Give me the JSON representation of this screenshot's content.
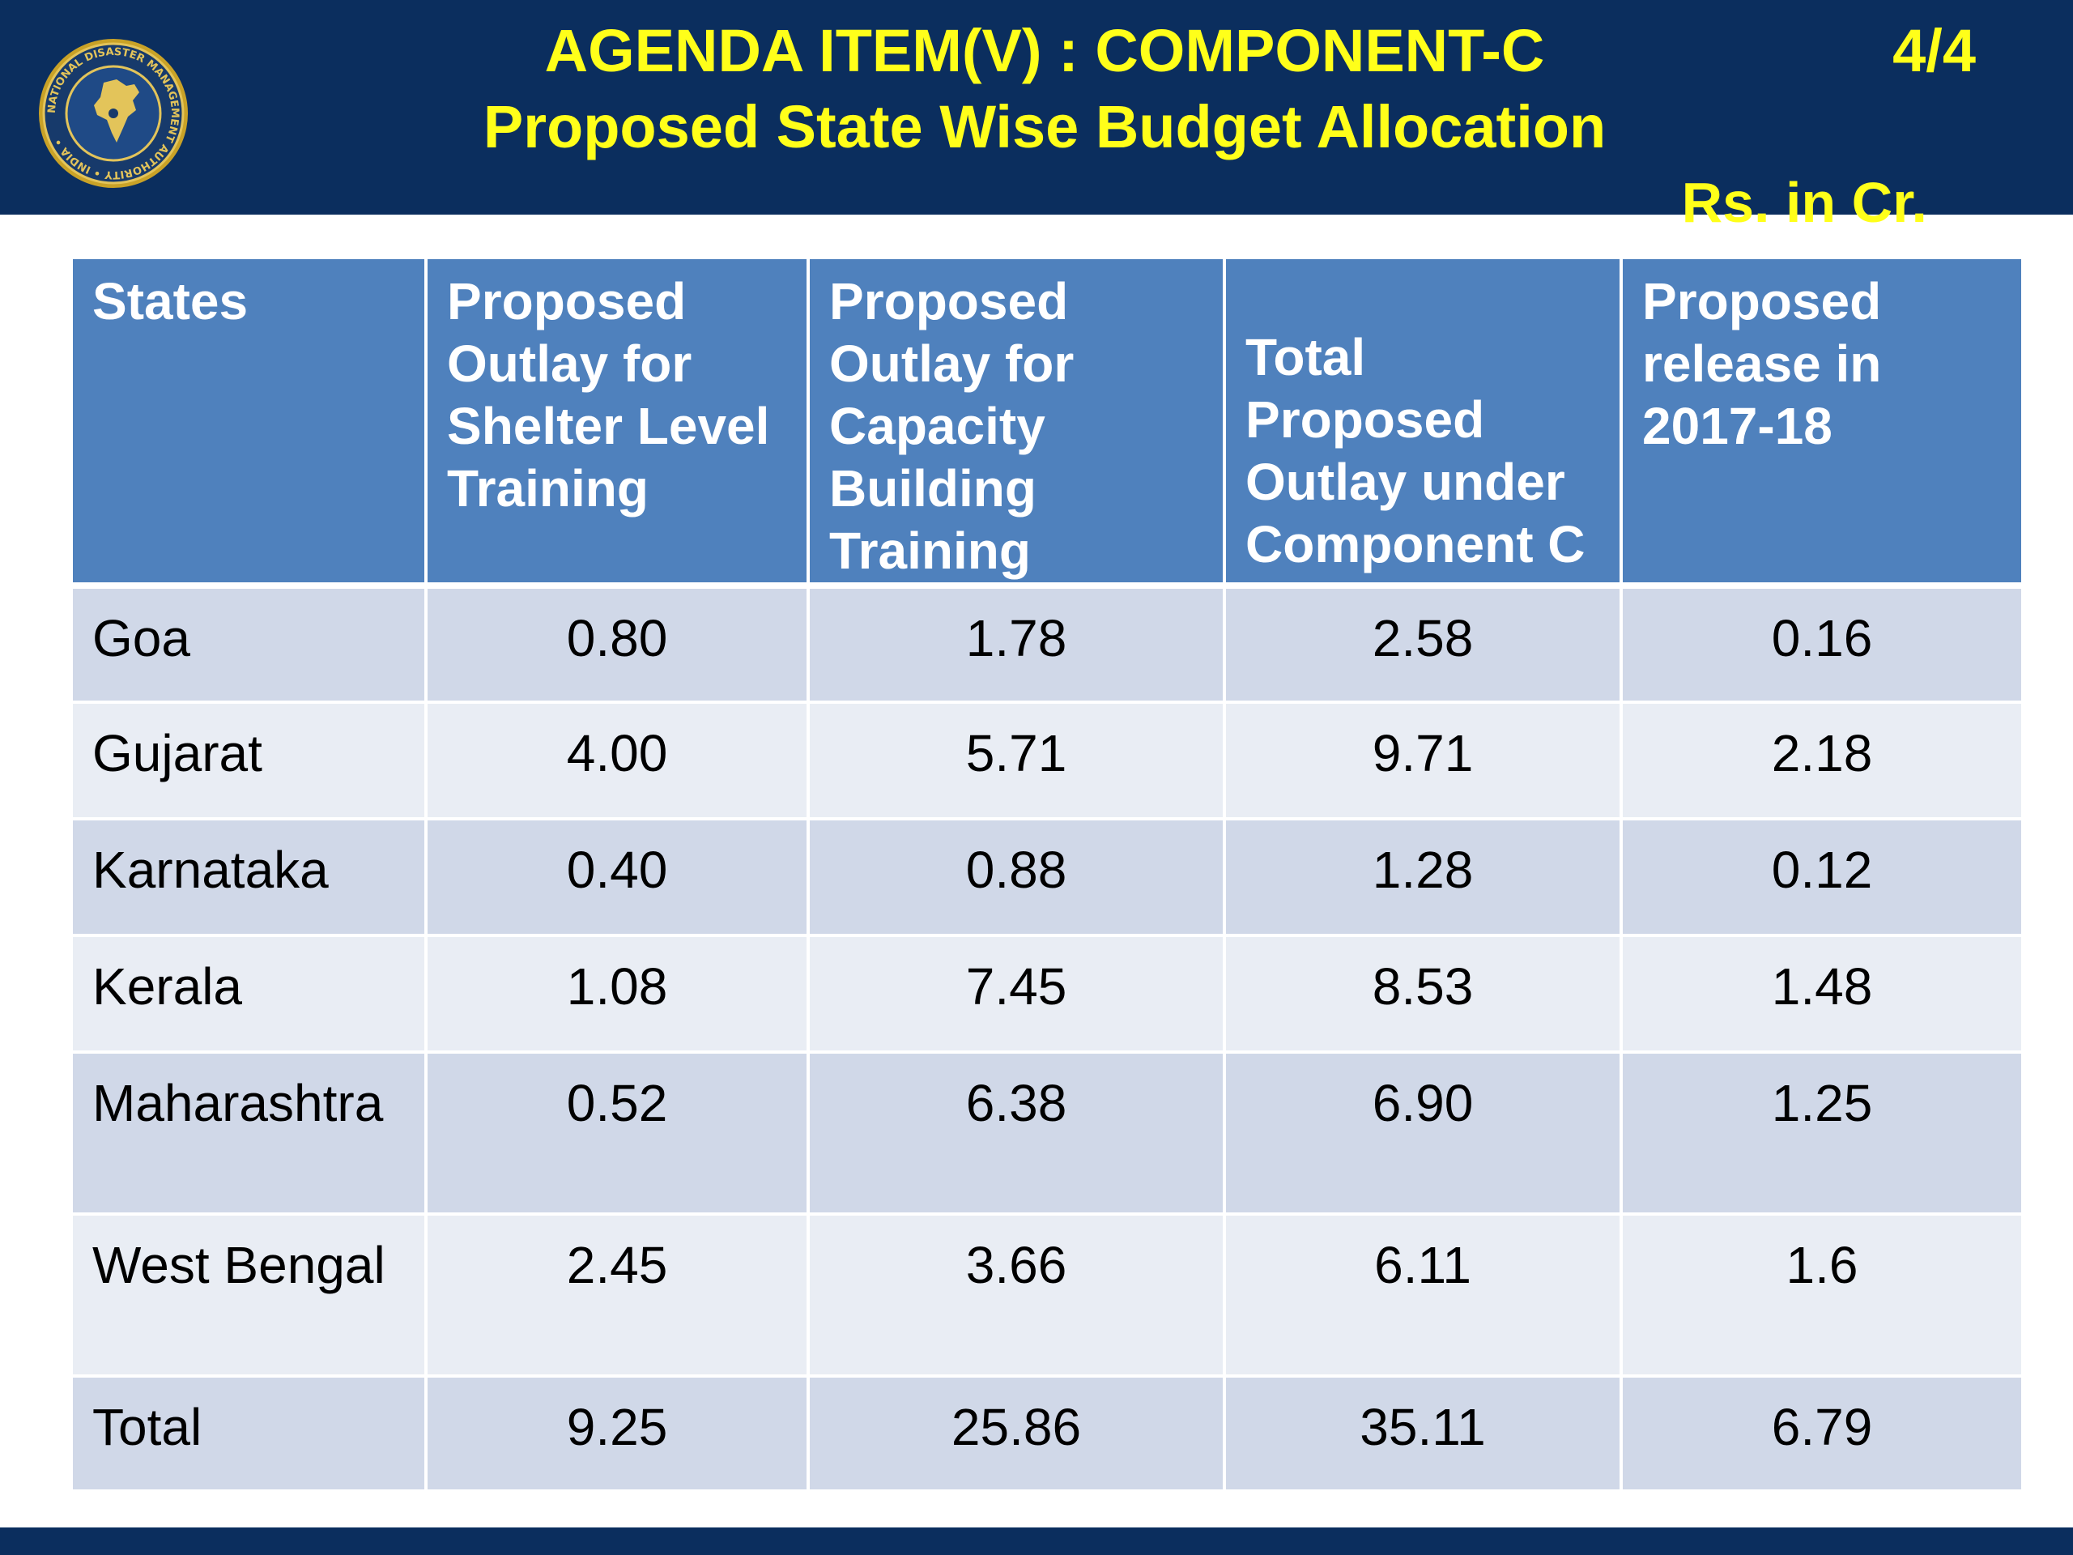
{
  "header": {
    "title_line1": "AGENDA ITEM(V) : COMPONENT-C",
    "title_line2": "Proposed State Wise Budget Allocation",
    "page_indicator": "4/4",
    "unit_note": "Rs. in Cr.",
    "logo_icon": "ndma-emblem-icon",
    "logo_text": "NATIONAL DISASTER MANAGEMENT AUTHORITY • INDIA •"
  },
  "colors": {
    "header_bg": "#0b2e5e",
    "title_text": "#ffff1a",
    "table_header_bg": "#4f81bd",
    "row_odd_bg": "#d0d8e8",
    "row_even_bg": "#e9edf4"
  },
  "table": {
    "columns": [
      "States",
      "Proposed Outlay for Shelter Level Training",
      "Proposed Outlay for Capacity Building Training",
      "Total Proposed Outlay under Component C",
      "Proposed release in 2017-18"
    ],
    "rows": [
      {
        "state": "Goa",
        "shelter": "0.80",
        "capacity": "1.78",
        "total": "2.58",
        "release": "0.16"
      },
      {
        "state": "Gujarat",
        "shelter": "4.00",
        "capacity": "5.71",
        "total": "9.71",
        "release": "2.18"
      },
      {
        "state": "Karnataka",
        "shelter": "0.40",
        "capacity": "0.88",
        "total": "1.28",
        "release": "0.12"
      },
      {
        "state": "Kerala",
        "shelter": "1.08",
        "capacity": "7.45",
        "total": "8.53",
        "release": "1.48"
      },
      {
        "state": "Maharashtra",
        "shelter": "0.52",
        "capacity": "6.38",
        "total": "6.90",
        "release": "1.25"
      },
      {
        "state": "West Bengal",
        "shelter": "2.45",
        "capacity": "3.66",
        "total": "6.11",
        "release": "1.6"
      },
      {
        "state": "Total",
        "shelter": "9.25",
        "capacity": "25.86",
        "total": "35.11",
        "release": "6.79"
      }
    ]
  }
}
